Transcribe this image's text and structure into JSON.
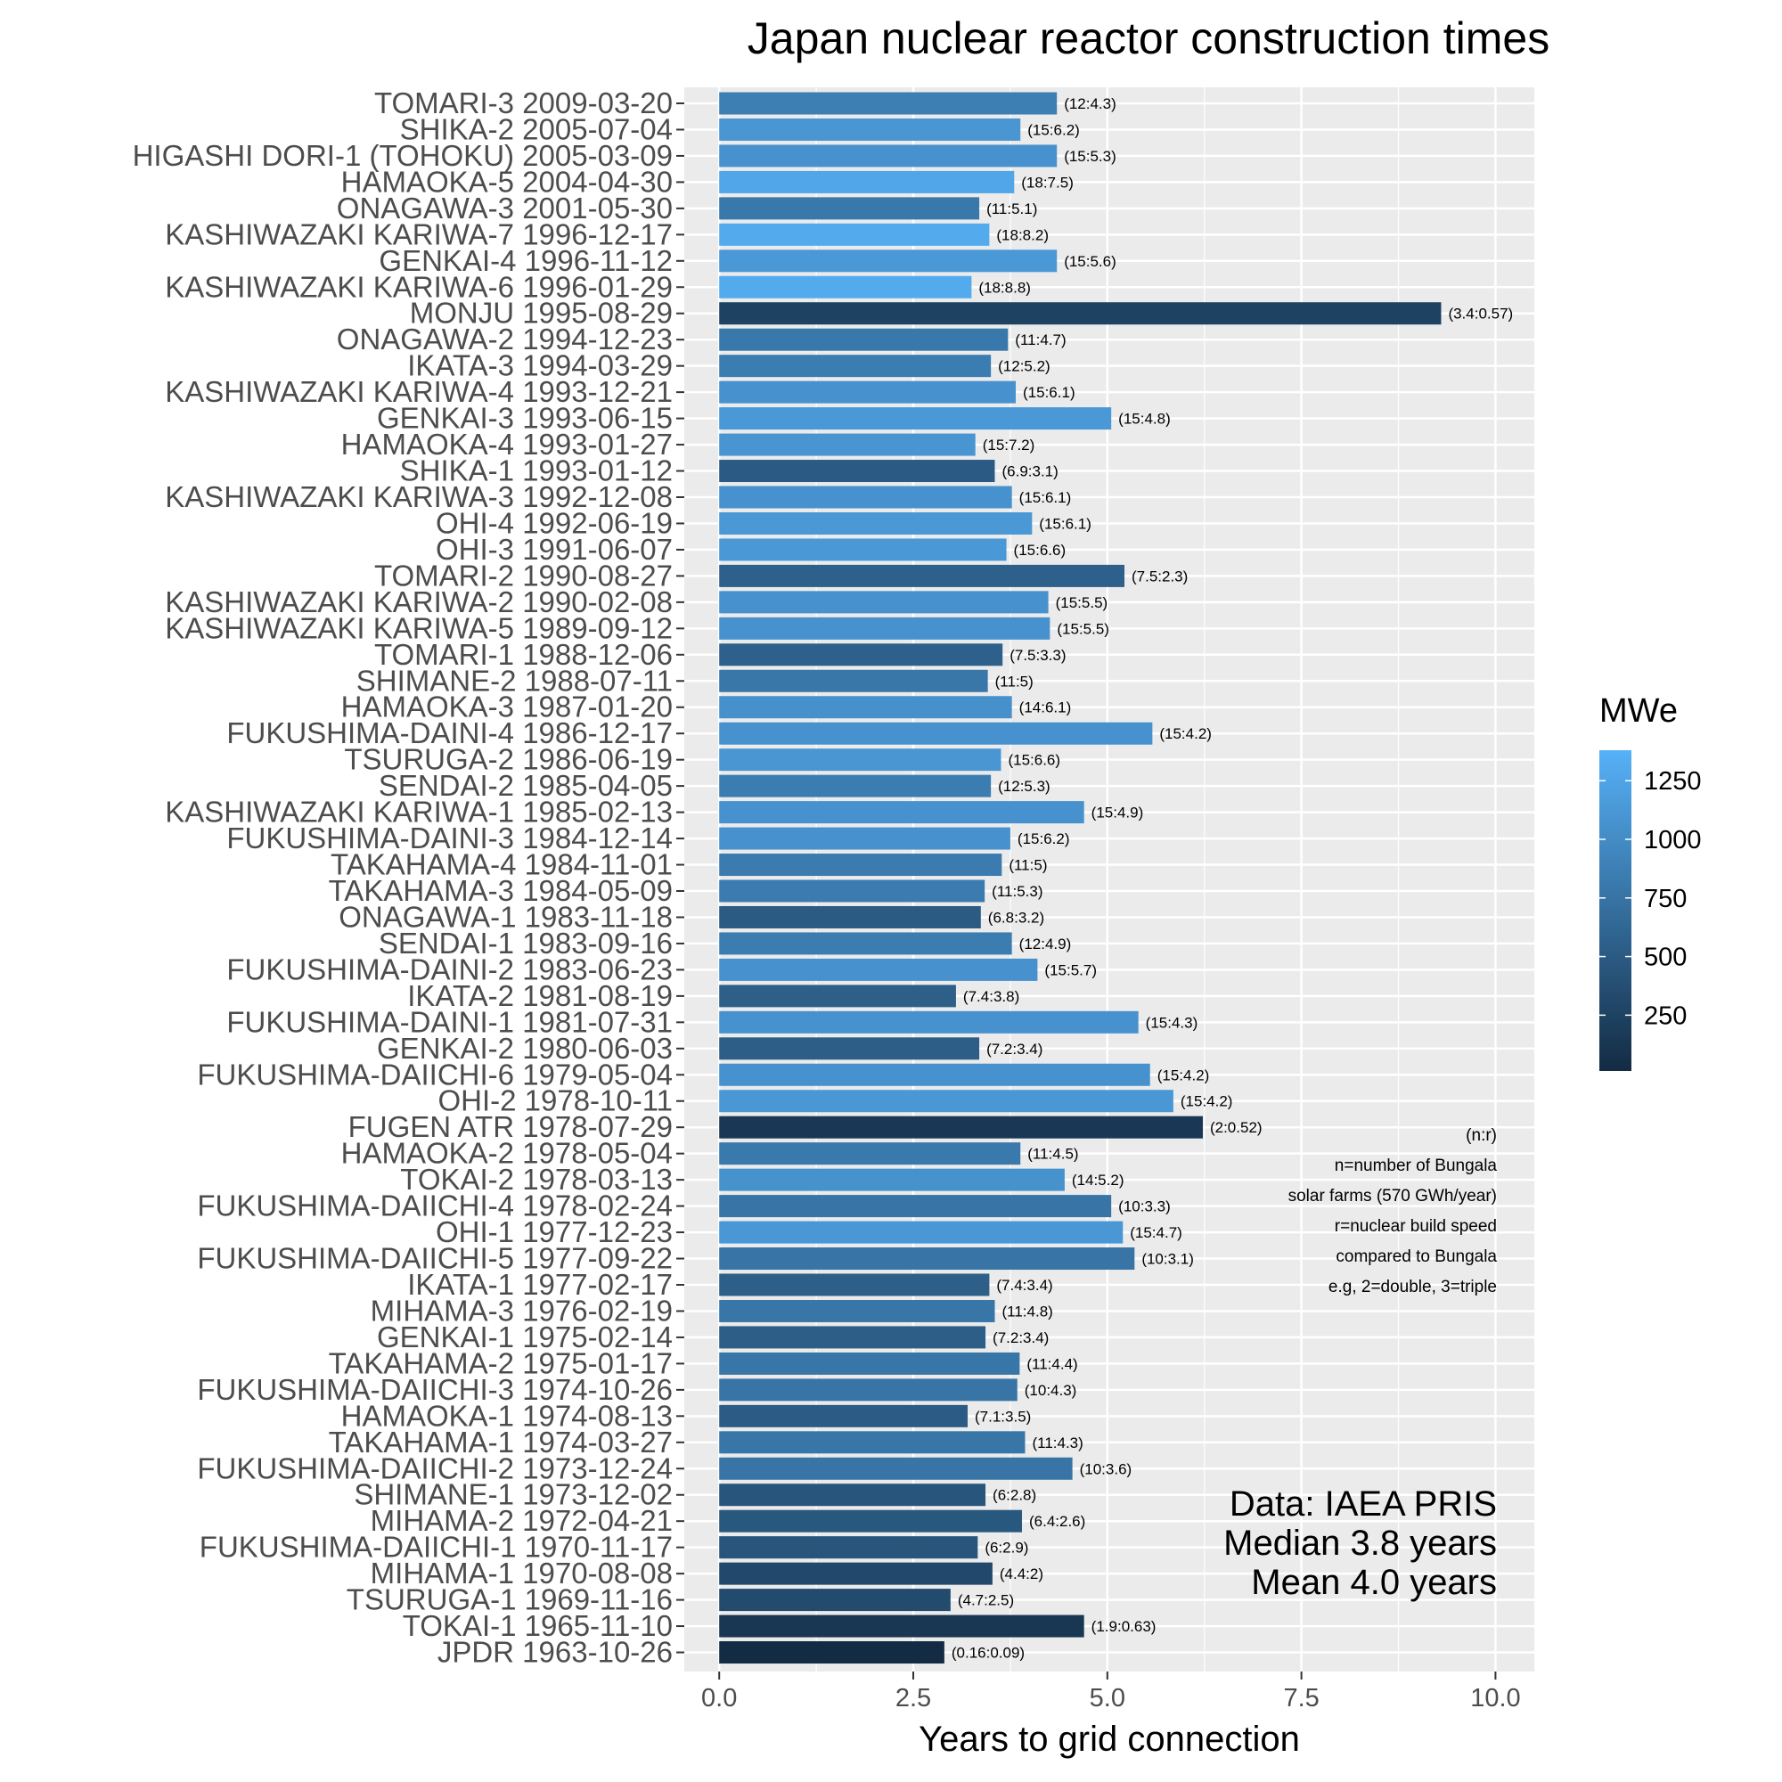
{
  "chart_data": {
    "type": "bar",
    "orientation": "horizontal",
    "title": "Japan nuclear reactor construction times",
    "xlabel": "Years to grid connection",
    "ylabel": "",
    "xlim": [
      -0.45,
      10.5
    ],
    "xticks": [
      "0.0",
      "2.5",
      "5.0",
      "7.5",
      "10.0"
    ],
    "xtick_values": [
      0,
      2.5,
      5,
      7.5,
      10
    ],
    "grid": true,
    "legend": {
      "title": "MWe",
      "position": "right",
      "ticks": [
        "1250",
        "1000",
        "750",
        "500",
        "250"
      ],
      "tick_values": [
        1250,
        1000,
        750,
        500,
        250
      ],
      "range": [
        12,
        1380
      ],
      "color_low": "#132b43",
      "color_high": "#56b1f7"
    },
    "annotation_lines": [
      "(n:r)",
      "n=number of Bungala",
      "solar farms (570 GWh/year)",
      "r=nuclear build speed",
      "compared to Bungala",
      "e.g, 2=double, 3=triple"
    ],
    "summary_lines": [
      "Data: IAEA PRIS",
      "Median 3.8 years",
      "Mean 4.0 years"
    ],
    "categories": [
      "TOMARI-3 2009-03-20",
      "SHIKA-2 2005-07-04",
      "HIGASHI DORI-1 (TOHOKU) 2005-03-09",
      "HAMAOKA-5 2004-04-30",
      "ONAGAWA-3 2001-05-30",
      "KASHIWAZAKI KARIWA-7 1996-12-17",
      "GENKAI-4 1996-11-12",
      "KASHIWAZAKI KARIWA-6 1996-01-29",
      "MONJU 1995-08-29",
      "ONAGAWA-2 1994-12-23",
      "IKATA-3 1994-03-29",
      "KASHIWAZAKI KARIWA-4 1993-12-21",
      "GENKAI-3 1993-06-15",
      "HAMAOKA-4 1993-01-27",
      "SHIKA-1 1993-01-12",
      "KASHIWAZAKI KARIWA-3 1992-12-08",
      "OHI-4 1992-06-19",
      "OHI-3 1991-06-07",
      "TOMARI-2 1990-08-27",
      "KASHIWAZAKI KARIWA-2 1990-02-08",
      "KASHIWAZAKI KARIWA-5 1989-09-12",
      "TOMARI-1 1988-12-06",
      "SHIMANE-2 1988-07-11",
      "HAMAOKA-3 1987-01-20",
      "FUKUSHIMA-DAINI-4 1986-12-17",
      "TSURUGA-2 1986-06-19",
      "SENDAI-2 1985-04-05",
      "KASHIWAZAKI KARIWA-1 1985-02-13",
      "FUKUSHIMA-DAINI-3 1984-12-14",
      "TAKAHAMA-4 1984-11-01",
      "TAKAHAMA-3 1984-05-09",
      "ONAGAWA-1 1983-11-18",
      "SENDAI-1 1983-09-16",
      "FUKUSHIMA-DAINI-2 1983-06-23",
      "IKATA-2 1981-08-19",
      "FUKUSHIMA-DAINI-1 1981-07-31",
      "GENKAI-2 1980-06-03",
      "FUKUSHIMA-DAIICHI-6 1979-05-04",
      "OHI-2 1978-10-11",
      "FUGEN ATR 1978-07-29",
      "HAMAOKA-2 1978-05-04",
      "TOKAI-2 1978-03-13",
      "FUKUSHIMA-DAIICHI-4 1978-02-24",
      "OHI-1 1977-12-23",
      "FUKUSHIMA-DAIICHI-5 1977-09-22",
      "IKATA-1 1977-02-17",
      "MIHAMA-3 1976-02-19",
      "GENKAI-1 1975-02-14",
      "TAKAHAMA-2 1975-01-17",
      "FUKUSHIMA-DAIICHI-3 1974-10-26",
      "HAMAOKA-1 1974-08-13",
      "TAKAHAMA-1 1974-03-27",
      "FUKUSHIMA-DAIICHI-2 1973-12-24",
      "SHIMANE-1 1973-12-02",
      "MIHAMA-2 1972-04-21",
      "FUKUSHIMA-DAIICHI-1 1970-11-17",
      "MIHAMA-1 1970-08-08",
      "TSURUGA-1 1969-11-16",
      "TOKAI-1 1965-11-10",
      "JPDR 1963-10-26"
    ],
    "values": [
      4.35,
      3.88,
      4.35,
      3.8,
      3.35,
      3.48,
      4.35,
      3.25,
      9.3,
      3.72,
      3.5,
      3.82,
      5.05,
      3.3,
      3.55,
      3.77,
      4.03,
      3.7,
      5.22,
      4.24,
      4.26,
      3.65,
      3.46,
      3.77,
      5.58,
      3.63,
      3.5,
      4.7,
      3.75,
      3.64,
      3.42,
      3.37,
      3.77,
      4.1,
      3.05,
      5.4,
      3.35,
      5.55,
      5.85,
      6.23,
      3.88,
      4.45,
      5.05,
      5.2,
      5.35,
      3.48,
      3.55,
      3.43,
      3.87,
      3.84,
      3.2,
      3.94,
      4.55,
      3.43,
      3.9,
      3.33,
      3.52,
      2.98,
      4.7,
      2.9
    ],
    "mwe": [
      866,
      1108,
      1067,
      1267,
      796,
      1315,
      1127,
      1315,
      246,
      796,
      846,
      1067,
      1127,
      1092,
      505,
      1067,
      1127,
      1127,
      550,
      1067,
      1067,
      550,
      789,
      1056,
      1067,
      1108,
      846,
      1067,
      1067,
      830,
      830,
      498,
      846,
      1067,
      538,
      1067,
      529,
      1067,
      1120,
      148,
      806,
      1060,
      760,
      1120,
      760,
      538,
      780,
      529,
      780,
      760,
      515,
      780,
      760,
      439,
      470,
      439,
      320,
      341,
      137,
      12
    ],
    "labels": [
      "(12:4.3)",
      "(15:6.2)",
      "(15:5.3)",
      "(18:7.5)",
      "(11:5.1)",
      "(18:8.2)",
      "(15:5.6)",
      "(18:8.8)",
      "(3.4:0.57)",
      "(11:4.7)",
      "(12:5.2)",
      "(15:6.1)",
      "(15:4.8)",
      "(15:7.2)",
      "(6.9:3.1)",
      "(15:6.1)",
      "(15:6.1)",
      "(15:6.6)",
      "(7.5:2.3)",
      "(15:5.5)",
      "(15:5.5)",
      "(7.5:3.3)",
      "(11:5)",
      "(14:6.1)",
      "(15:4.2)",
      "(15:6.6)",
      "(12:5.3)",
      "(15:4.9)",
      "(15:6.2)",
      "(11:5)",
      "(11:5.3)",
      "(6.8:3.2)",
      "(12:4.9)",
      "(15:5.7)",
      "(7.4:3.8)",
      "(15:4.3)",
      "(7.2:3.4)",
      "(15:4.2)",
      "(15:4.2)",
      "(2:0.52)",
      "(11:4.5)",
      "(14:5.2)",
      "(10:3.3)",
      "(15:4.7)",
      "(10:3.1)",
      "(7.4:3.4)",
      "(11:4.8)",
      "(7.2:3.4)",
      "(11:4.4)",
      "(10:4.3)",
      "(7.1:3.5)",
      "(11:4.3)",
      "(10:3.6)",
      "(6:2.8)",
      "(6.4:2.6)",
      "(6:2.9)",
      "(4.4:2)",
      "(4.7:2.5)",
      "(1.9:0.63)",
      "(0.16:0.09)"
    ]
  }
}
